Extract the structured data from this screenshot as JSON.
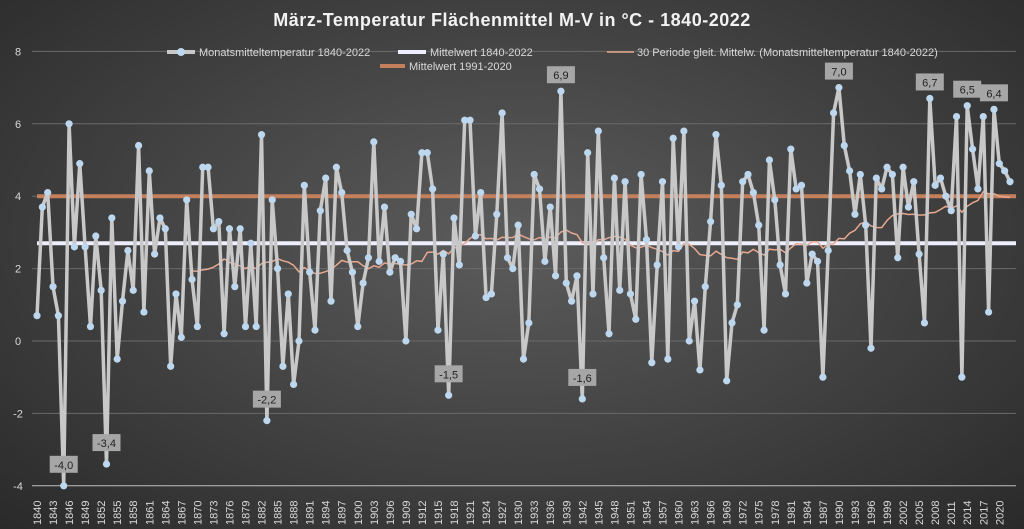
{
  "chart_data": {
    "type": "line",
    "title": "März-Temperatur Flächenmittel M-V in °C - 1840-2022",
    "xlabel": "",
    "ylabel": "",
    "ylim": [
      -4,
      8
    ],
    "yticks": [
      8,
      6,
      4,
      2,
      0,
      -2,
      -4
    ],
    "x_start": 1840,
    "x_end": 2022,
    "x_tick_step": 3,
    "grid": true,
    "legend_placement": "top",
    "series": [
      {
        "name": "Monatsmitteltemperatur 1840-2022",
        "color": "#c8c8c8",
        "marker_color": "#bdd7ee",
        "values": [
          0.7,
          3.7,
          4.1,
          1.5,
          0.7,
          -4.0,
          6.0,
          2.6,
          4.9,
          2.6,
          0.4,
          2.9,
          1.4,
          -3.4,
          3.4,
          -0.5,
          1.1,
          2.5,
          1.4,
          5.4,
          0.8,
          4.7,
          2.4,
          3.4,
          3.1,
          -0.7,
          1.3,
          0.1,
          3.9,
          1.7,
          0.4,
          4.8,
          4.8,
          3.1,
          3.3,
          0.2,
          3.1,
          1.5,
          3.1,
          0.4,
          2.7,
          0.4,
          5.7,
          -2.2,
          3.9,
          2.0,
          -0.7,
          1.3,
          -1.2,
          0.0,
          4.3,
          1.9,
          0.3,
          3.6,
          4.5,
          1.1,
          4.8,
          4.1,
          2.5,
          1.9,
          0.4,
          1.6,
          2.3,
          5.5,
          2.2,
          3.7,
          1.9,
          2.3,
          2.2,
          0.0,
          3.5,
          3.1,
          5.2,
          5.2,
          4.2,
          0.3,
          2.4,
          -1.5,
          3.4,
          2.1,
          6.1,
          6.1,
          2.9,
          4.1,
          1.2,
          1.3,
          3.5,
          6.3,
          2.3,
          2.0,
          3.2,
          -0.5,
          0.5,
          4.6,
          4.2,
          2.2,
          3.7,
          1.8,
          6.9,
          1.6,
          1.1,
          1.8,
          -1.6,
          5.2,
          1.3,
          5.8,
          2.3,
          0.2,
          4.5,
          1.4,
          4.4,
          1.3,
          0.6,
          4.6,
          2.8,
          -0.6,
          2.1,
          4.4,
          -0.5,
          5.6,
          2.6,
          5.8,
          0.0,
          1.1,
          -0.8,
          1.5,
          3.3,
          5.7,
          4.3,
          -1.1,
          0.5,
          1.0,
          4.4,
          4.6,
          4.1,
          3.2,
          0.3,
          5.0,
          3.9,
          2.1,
          1.3,
          5.3,
          4.2,
          4.3,
          1.6,
          2.4,
          2.2,
          -1.0,
          2.5,
          6.3,
          7.0,
          5.4,
          4.7,
          3.5,
          4.6,
          3.2,
          -0.2,
          4.5,
          4.2,
          4.8,
          4.6,
          2.3,
          4.8,
          3.7,
          4.4,
          2.4,
          0.5,
          6.7,
          4.3,
          4.5,
          4.0,
          3.6,
          6.2,
          -1.0,
          6.5,
          5.3,
          4.2,
          6.2,
          0.8,
          6.4,
          4.9,
          4.7,
          4.4
        ]
      },
      {
        "name": "Mittelwert 1840-2022",
        "color": "#eeeeff",
        "value": 2.7
      },
      {
        "name": "30 Periode gleit. Mittelw. (Monatsmitteltemperatur 1840-2022)",
        "color": "#e8a890",
        "period": 30
      },
      {
        "name": "Mittelwert 1991-2020",
        "color": "#c4805c",
        "value": 4.0
      }
    ],
    "data_labels": [
      {
        "year": 1845,
        "text": "-4,0"
      },
      {
        "year": 1853,
        "text": "-3,4"
      },
      {
        "year": 1883,
        "text": "-2,2"
      },
      {
        "year": 1917,
        "text": "-1,5"
      },
      {
        "year": 1938,
        "text": "6,9"
      },
      {
        "year": 1942,
        "text": "-1,6"
      },
      {
        "year": 1990,
        "text": "7,0"
      },
      {
        "year": 2007,
        "text": "6,7"
      },
      {
        "year": 2014,
        "text": "6,5"
      },
      {
        "year": 2019,
        "text": "6,4"
      }
    ]
  }
}
